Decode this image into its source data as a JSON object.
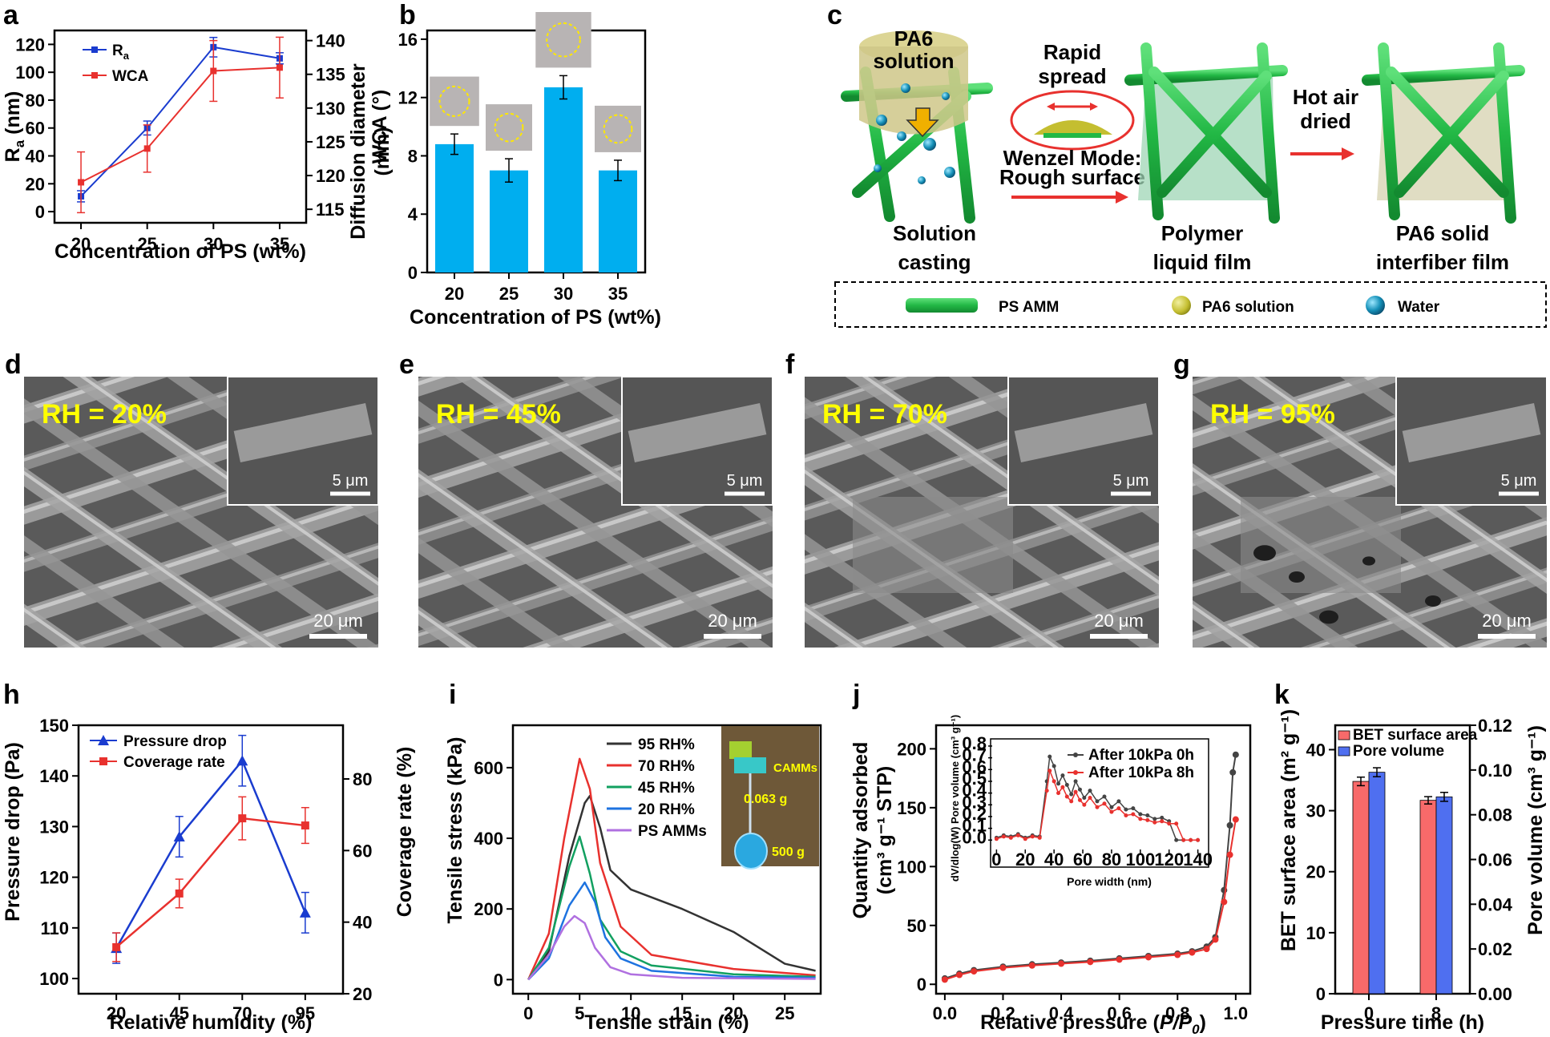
{
  "colors": {
    "blue": "#1a3ccf",
    "red": "#e8312e",
    "bar": "#00aeef",
    "green": "#22bb44",
    "panel_e_text": "#ffff00"
  },
  "panels": {
    "a": {
      "label": "a",
      "xlabel": "Concentration of PS (wt%)",
      "ylabel_left": "R",
      "ylabel_left_sub": "a",
      "ylabel_left_unit": " (nm)",
      "ylabel_right": "WCA (°)",
      "legend": [
        {
          "name": "R",
          "sub": "a",
          "color": "#1a3ccf",
          "marker": "square"
        },
        {
          "name": "WCA",
          "color": "#e8312e",
          "marker": "square"
        }
      ]
    },
    "b": {
      "label": "b",
      "xlabel": "Concentration of PS (wt%)",
      "ylabel_line1": "Diffusion diameter",
      "ylabel_line2": "(mm)"
    },
    "c": {
      "label": "c",
      "pa6_solution": "PA6 solution",
      "rapid_spread": "Rapid spread",
      "wenzel": "Wenzel Mode:",
      "rough": "Rough surface",
      "hot_air": "Hot air dried",
      "step1_l1": "Solution",
      "step1_l2": "casting",
      "step2_l1": "Polymer",
      "step2_l2": "liquid film",
      "step3_l1": "PA6 solid",
      "step3_l2": "interfiber film",
      "legend": [
        {
          "name": "PS AMM",
          "icon": "fiber-icon"
        },
        {
          "name": "PA6 solution",
          "icon": "droplet-icon"
        },
        {
          "name": "Water",
          "icon": "water-droplet-icon"
        }
      ]
    },
    "sem": [
      {
        "label": "d",
        "rh": "RH = 20%",
        "inset_scale": "5 μm",
        "scale": "20 μm"
      },
      {
        "label": "e",
        "rh": "RH = 45%",
        "inset_scale": "5 μm",
        "scale": "20 μm"
      },
      {
        "label": "f",
        "rh": "RH = 70%",
        "inset_scale": "5 μm",
        "scale": "20 μm"
      },
      {
        "label": "g",
        "rh": "RH = 95%",
        "inset_scale": "5 μm",
        "scale": "20 μm"
      }
    ],
    "h": {
      "label": "h",
      "xlabel": "Relative humidity (%)",
      "ylabel_left": "Pressure drop (Pa)",
      "ylabel_right": "Coverage rate (%)",
      "legend": [
        {
          "name": "Pressure drop",
          "color": "#1a3ccf",
          "marker": "triangle"
        },
        {
          "name": "Coverage rate",
          "color": "#e8312e",
          "marker": "square"
        }
      ]
    },
    "i": {
      "label": "i",
      "xlabel": "Tensile strain (%)",
      "ylabel": "Tensile stress (kPa)",
      "photo_labels": {
        "camms": "CAMMs",
        "weight1": "0.063 g",
        "weight2": "500 g"
      }
    },
    "j": {
      "label": "j",
      "xlabel": "Relative pressure (",
      "xlabel_italic": "P/P",
      "xlabel_sub": "0",
      "xlabel_end": ")",
      "ylabel_line1": "Quantity adsorbed",
      "ylabel_line2": "(cm³ g⁻¹ STP)",
      "inset": {
        "xlabel": "Pore width (nm)",
        "ylabel": "dV/dlog(W) Pore volume (cm³ g⁻¹)"
      }
    },
    "k": {
      "label": "k",
      "xlabel": "Pressure time (h)",
      "ylabel_left": "BET surface area (m² g⁻¹)",
      "ylabel_right": "Pore volume (cm³ g⁻¹)",
      "legend": [
        {
          "name": "BET surface area",
          "color": "#f86a6a"
        },
        {
          "name": "Pore volume",
          "color": "#4f6ff0"
        }
      ]
    }
  },
  "chart_data": [
    {
      "panel": "a",
      "type": "line",
      "x": [
        20,
        25,
        30,
        35
      ],
      "series": [
        {
          "name": "Ra",
          "axis": "left",
          "values": [
            11,
            60,
            118,
            110
          ],
          "err": [
            4,
            5,
            7,
            4
          ]
        },
        {
          "name": "WCA",
          "axis": "right",
          "values": [
            119,
            124,
            135.5,
            136
          ],
          "err": [
            4.5,
            3.5,
            4.5,
            4.5
          ]
        }
      ],
      "xlim": [
        18,
        37
      ],
      "ylim_left": [
        -8,
        130
      ],
      "ylim_right": [
        113,
        141.5
      ],
      "yticks_left": [
        0,
        20,
        40,
        60,
        80,
        100,
        120
      ],
      "yticks_right": [
        115,
        120,
        125,
        130,
        135,
        140
      ]
    },
    {
      "panel": "b",
      "type": "bar",
      "categories": [
        "20",
        "25",
        "30",
        "35"
      ],
      "values": [
        8.8,
        7.0,
        12.7,
        7.0
      ],
      "err": [
        0.7,
        0.8,
        0.8,
        0.7
      ],
      "ylim": [
        0,
        16.6
      ],
      "yticks": [
        0,
        4,
        8,
        12,
        16
      ]
    },
    {
      "panel": "h",
      "type": "line",
      "x": [
        20,
        45,
        70,
        95
      ],
      "series": [
        {
          "name": "Pressure drop",
          "axis": "left",
          "values": [
            106,
            128,
            143,
            113
          ],
          "err": [
            3,
            4,
            5,
            4
          ]
        },
        {
          "name": "Coverage rate",
          "axis": "right",
          "values": [
            33,
            48,
            69,
            67
          ],
          "err": [
            4,
            4,
            6,
            5
          ]
        }
      ],
      "ylim_left": [
        97,
        150
      ],
      "ylim_right": [
        20,
        95
      ],
      "yticks_left": [
        100,
        110,
        120,
        130,
        140,
        150
      ],
      "yticks_right": [
        20,
        40,
        60,
        80
      ]
    },
    {
      "panel": "i",
      "type": "line",
      "xlim": [
        -1.5,
        28.5
      ],
      "ylim": [
        -40,
        720
      ],
      "xticks": [
        0,
        5,
        10,
        15,
        20,
        25
      ],
      "yticks": [
        0,
        200,
        400,
        600
      ],
      "series": [
        {
          "name": "95 RH%",
          "color": "#333333",
          "points": [
            [
              0,
              0
            ],
            [
              2,
              80
            ],
            [
              4,
              350
            ],
            [
              5.5,
              500
            ],
            [
              6,
              520
            ],
            [
              7,
              430
            ],
            [
              8,
              310
            ],
            [
              10,
              255
            ],
            [
              15,
              200
            ],
            [
              20,
              135
            ],
            [
              25,
              45
            ],
            [
              28,
              25
            ]
          ]
        },
        {
          "name": "70 RH%",
          "color": "#e8312e",
          "points": [
            [
              0,
              0
            ],
            [
              2,
              130
            ],
            [
              3.5,
              400
            ],
            [
              5,
              625
            ],
            [
              6,
              540
            ],
            [
              7,
              330
            ],
            [
              9,
              150
            ],
            [
              12,
              70
            ],
            [
              20,
              30
            ],
            [
              28,
              12
            ]
          ]
        },
        {
          "name": "45 RH%",
          "color": "#12a060",
          "points": [
            [
              0,
              0
            ],
            [
              2,
              90
            ],
            [
              4,
              320
            ],
            [
              5,
              405
            ],
            [
              6,
              300
            ],
            [
              7,
              170
            ],
            [
              9,
              80
            ],
            [
              12,
              40
            ],
            [
              20,
              15
            ],
            [
              28,
              8
            ]
          ]
        },
        {
          "name": "20 RH%",
          "color": "#1e73e0",
          "points": [
            [
              0,
              0
            ],
            [
              2,
              60
            ],
            [
              4,
              210
            ],
            [
              5.5,
              275
            ],
            [
              6.5,
              220
            ],
            [
              7.5,
              120
            ],
            [
              9,
              60
            ],
            [
              12,
              25
            ],
            [
              20,
              8
            ],
            [
              28,
              5
            ]
          ]
        },
        {
          "name": "PS AMMs",
          "color": "#b070e0",
          "points": [
            [
              0,
              0
            ],
            [
              2,
              70
            ],
            [
              3.5,
              150
            ],
            [
              4.5,
              180
            ],
            [
              5.5,
              160
            ],
            [
              6.5,
              90
            ],
            [
              8,
              35
            ],
            [
              10,
              15
            ],
            [
              15,
              5
            ],
            [
              28,
              2
            ]
          ]
        }
      ]
    },
    {
      "panel": "j",
      "type": "line",
      "xlim": [
        -0.03,
        1.05
      ],
      "ylim": [
        -8,
        220
      ],
      "xticks": [
        0.0,
        0.2,
        0.4,
        0.6,
        0.8,
        1.0
      ],
      "yticks": [
        0,
        50,
        100,
        150,
        200
      ],
      "series": [
        {
          "name": "After 10kPa 0h",
          "color": "#444444",
          "points": [
            [
              0,
              5
            ],
            [
              0.05,
              9
            ],
            [
              0.1,
              12
            ],
            [
              0.2,
              15
            ],
            [
              0.3,
              17
            ],
            [
              0.4,
              18.5
            ],
            [
              0.5,
              20
            ],
            [
              0.6,
              22
            ],
            [
              0.7,
              24
            ],
            [
              0.8,
              26
            ],
            [
              0.85,
              28
            ],
            [
              0.9,
              32
            ],
            [
              0.93,
              40
            ],
            [
              0.96,
              80
            ],
            [
              0.98,
              135
            ],
            [
              0.99,
              180
            ],
            [
              1.0,
              195
            ]
          ]
        },
        {
          "name": "After 10kPa 8h",
          "color": "#e8312e",
          "points": [
            [
              0,
              4
            ],
            [
              0.05,
              8
            ],
            [
              0.1,
              11
            ],
            [
              0.2,
              14
            ],
            [
              0.3,
              16
            ],
            [
              0.4,
              17.5
            ],
            [
              0.5,
              19
            ],
            [
              0.6,
              21
            ],
            [
              0.7,
              23
            ],
            [
              0.8,
              25
            ],
            [
              0.85,
              27
            ],
            [
              0.9,
              30
            ],
            [
              0.93,
              38
            ],
            [
              0.96,
              70
            ],
            [
              0.98,
              110
            ],
            [
              1.0,
              140
            ]
          ]
        }
      ],
      "inset": {
        "xlim": [
          -3,
          143
        ],
        "ylim": [
          -0.08,
          0.82
        ],
        "xticks": [
          0,
          20,
          40,
          60,
          80,
          100,
          120,
          140
        ],
        "yticks": [
          0.0,
          0.1,
          0.2,
          0.3,
          0.4,
          0.5,
          0.6,
          0.7,
          0.8
        ],
        "series": [
          {
            "name": "After 10kPa 0h",
            "color": "#444444",
            "points": [
              [
                0,
                0.02
              ],
              [
                5,
                0.04
              ],
              [
                10,
                0.03
              ],
              [
                15,
                0.05
              ],
              [
                20,
                0.02
              ],
              [
                25,
                0.04
              ],
              [
                30,
                0.03
              ],
              [
                35,
                0.5
              ],
              [
                37,
                0.71
              ],
              [
                40,
                0.63
              ],
              [
                43,
                0.48
              ],
              [
                46,
                0.55
              ],
              [
                49,
                0.47
              ],
              [
                52,
                0.39
              ],
              [
                55,
                0.5
              ],
              [
                58,
                0.43
              ],
              [
                61,
                0.36
              ],
              [
                65,
                0.42
              ],
              [
                70,
                0.33
              ],
              [
                75,
                0.37
              ],
              [
                80,
                0.28
              ],
              [
                85,
                0.33
              ],
              [
                90,
                0.26
              ],
              [
                95,
                0.27
              ],
              [
                100,
                0.22
              ],
              [
                105,
                0.21
              ],
              [
                110,
                0.18
              ],
              [
                115,
                0.19
              ],
              [
                120,
                0.16
              ],
              [
                125,
                0.0
              ],
              [
                130,
                0.0
              ],
              [
                135,
                0.0
              ],
              [
                140,
                0.0
              ]
            ]
          },
          {
            "name": "After 10kPa 8h",
            "color": "#e8312e",
            "points": [
              [
                0,
                0.01
              ],
              [
                5,
                0.03
              ],
              [
                10,
                0.02
              ],
              [
                15,
                0.04
              ],
              [
                20,
                0.01
              ],
              [
                25,
                0.03
              ],
              [
                30,
                0.02
              ],
              [
                35,
                0.42
              ],
              [
                37,
                0.59
              ],
              [
                40,
                0.5
              ],
              [
                43,
                0.4
              ],
              [
                46,
                0.45
              ],
              [
                49,
                0.37
              ],
              [
                52,
                0.33
              ],
              [
                55,
                0.41
              ],
              [
                58,
                0.34
              ],
              [
                61,
                0.3
              ],
              [
                65,
                0.36
              ],
              [
                70,
                0.28
              ],
              [
                75,
                0.31
              ],
              [
                80,
                0.24
              ],
              [
                85,
                0.27
              ],
              [
                90,
                0.21
              ],
              [
                95,
                0.22
              ],
              [
                100,
                0.18
              ],
              [
                105,
                0.17
              ],
              [
                110,
                0.15
              ],
              [
                115,
                0.16
              ],
              [
                120,
                0.14
              ],
              [
                125,
                0.14
              ],
              [
                130,
                0.0
              ],
              [
                135,
                0.0
              ],
              [
                140,
                0.0
              ]
            ]
          }
        ]
      }
    },
    {
      "panel": "k",
      "type": "bar",
      "categories": [
        "0",
        "8"
      ],
      "series": [
        {
          "name": "BET surface area",
          "axis": "left",
          "values": [
            34.8,
            31.7
          ],
          "err": [
            0.7,
            0.6
          ]
        },
        {
          "name": "Pore volume",
          "axis": "right",
          "values": [
            0.099,
            0.088
          ],
          "err": [
            0.002,
            0.002
          ]
        }
      ],
      "ylim_left": [
        0,
        44
      ],
      "ylim_right": [
        0,
        0.12
      ],
      "yticks_left": [
        0,
        10,
        20,
        30,
        40
      ],
      "yticks_right": [
        0.0,
        0.02,
        0.04,
        0.06,
        0.08,
        0.1,
        0.12
      ]
    }
  ]
}
